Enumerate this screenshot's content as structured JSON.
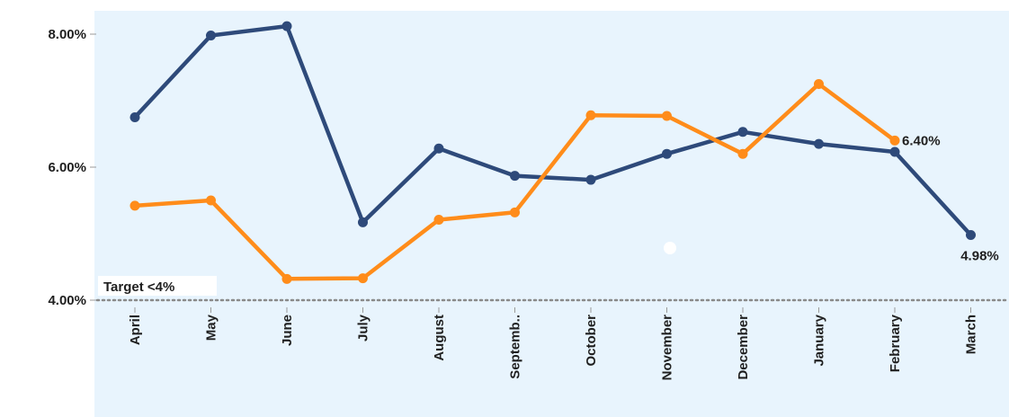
{
  "chart_data": {
    "type": "line",
    "title": "",
    "xlabel": "",
    "ylabel": "",
    "categories": [
      "April",
      "May",
      "June",
      "July",
      "August",
      "Septemb..",
      "October",
      "November",
      "December",
      "January",
      "February",
      "March"
    ],
    "ylim": [
      3.6,
      8.4
    ],
    "yticks": [
      4.0,
      6.0,
      8.0
    ],
    "ytick_labels": [
      "4.00%",
      "6.00%",
      "8.00%"
    ],
    "grid": false,
    "legend": "none",
    "series": [
      {
        "color": "#2e4a7a",
        "values": [
          6.75,
          7.98,
          8.12,
          5.17,
          6.28,
          5.87,
          5.81,
          6.2,
          6.53,
          6.35,
          6.23,
          4.98
        ],
        "end_label": "4.98%"
      },
      {
        "color": "#ff8c1a",
        "values": [
          5.42,
          5.5,
          4.32,
          4.33,
          5.21,
          5.32,
          6.78,
          6.77,
          6.2,
          7.25,
          6.4,
          null
        ],
        "end_label": "6.40%"
      }
    ],
    "target": {
      "value": 4.0,
      "label": "Target <4%",
      "style": "dotted",
      "color": "#8a8a8a"
    },
    "plot_background": "#e8f4fd"
  }
}
